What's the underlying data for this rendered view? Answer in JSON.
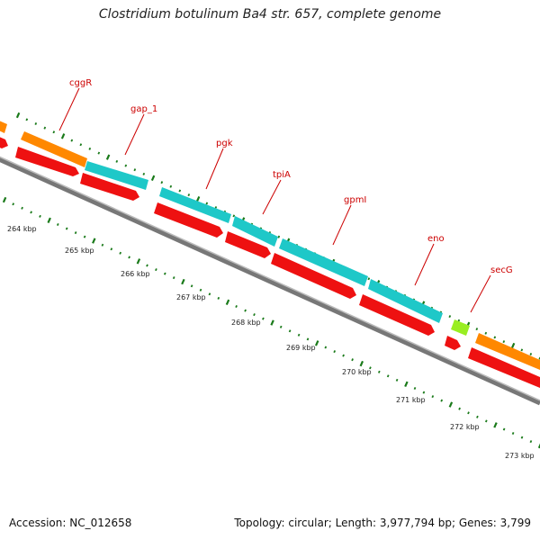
{
  "title": "Clostridium botulinum Ba4 str. 657, complete genome",
  "footer": {
    "accession": "Accession: NC_012658",
    "topology": "Topology: circular; Length: 3,977,794 bp; Genes: 3,799"
  },
  "colors": {
    "cds_red": "#ee1111",
    "cyan": "#1ec8c8",
    "orange": "#ff8800",
    "lime": "#99ee22",
    "tick_green": "#1a7a1a",
    "label_red": "#cc0000",
    "backbone": "#888888"
  },
  "ruler_labels": [
    "264 kbp",
    "265 kbp",
    "266 kbp",
    "267 kbp",
    "268 kbp",
    "269 kbp",
    "270 kbp",
    "271 kbp",
    "272 kbp",
    "273 kbp"
  ],
  "gene_labels": [
    "cggR",
    "gap_1",
    "pgk",
    "tpiA",
    "gpmI",
    "eno",
    "secG"
  ]
}
